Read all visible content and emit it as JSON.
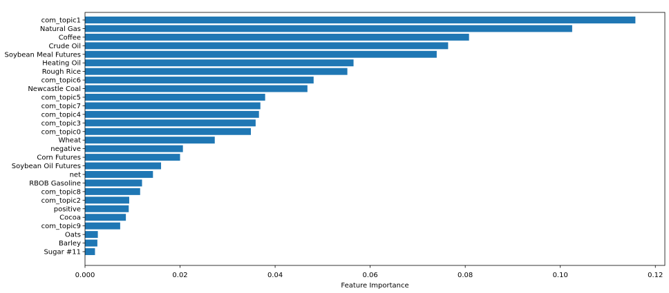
{
  "chart_data": {
    "type": "bar",
    "orientation": "horizontal",
    "categories": [
      "com_topic1",
      "Natural Gas",
      "Coffee",
      "Crude Oil",
      "Soybean Meal Futures",
      "Heating Oil",
      "Rough Rice",
      "com_topic6",
      "Newcastle Coal",
      "com_topic5",
      "com_topic7",
      "com_topic4",
      "com_topic3",
      "com_topic0",
      "Wheat",
      "negative",
      "Corn Futures",
      "Soybean Oil Futures",
      "net",
      "RBOB Gasoline",
      "com_topic8",
      "com_topic2",
      "positive",
      "Cocoa",
      "com_topic9",
      "Oats",
      "Barley",
      "Sugar #11"
    ],
    "values": [
      0.1158,
      0.1025,
      0.0808,
      0.0764,
      0.074,
      0.0565,
      0.0552,
      0.0481,
      0.0468,
      0.0379,
      0.0369,
      0.0366,
      0.0359,
      0.0349,
      0.0273,
      0.0206,
      0.02,
      0.016,
      0.0143,
      0.012,
      0.0116,
      0.0093,
      0.0092,
      0.0086,
      0.0074,
      0.0027,
      0.0026,
      0.0021
    ],
    "xlabel": "Feature Importance",
    "ylabel": "",
    "xlim": [
      0,
      0.122
    ],
    "xticks": [
      "0.000",
      "0.02",
      "0.04",
      "0.06",
      "0.08",
      "0.10",
      "0.12"
    ],
    "xtick_values": [
      0,
      0.02,
      0.04,
      0.06,
      0.08,
      0.1,
      0.12
    ],
    "bar_color": "#1f77b4",
    "grid": false
  }
}
